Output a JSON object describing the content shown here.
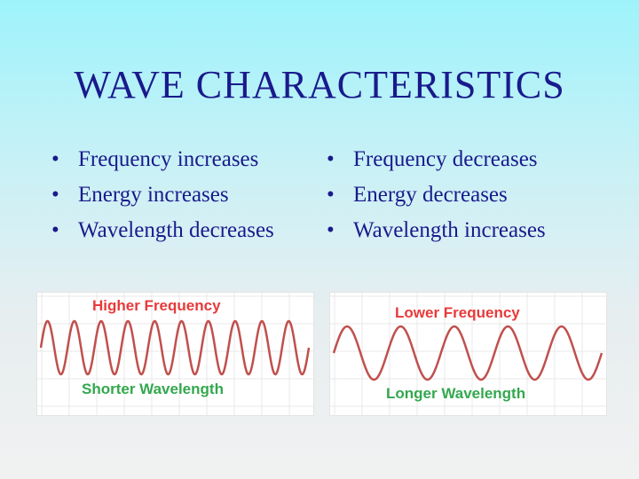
{
  "slide": {
    "title": "WAVE CHARACTERISTICS",
    "bullet_symbol": "•",
    "left_points": [
      "Frequency increases",
      "Energy increases",
      "Wavelength decreases"
    ],
    "right_points": [
      "Frequency decreases",
      "Energy decreases",
      "Wavelength increases"
    ]
  },
  "diagrams": {
    "high": {
      "top_label": "Higher Frequency",
      "bottom_label": "Shorter Wavelength",
      "cycles": 10,
      "wave_color": "#c0504d"
    },
    "low": {
      "top_label": "Lower Frequency",
      "bottom_label": "Longer Wavelength",
      "cycles": 5,
      "wave_color": "#c0504d"
    },
    "label_top_color": "#e83a3a",
    "label_bottom_color": "#33a84e"
  }
}
